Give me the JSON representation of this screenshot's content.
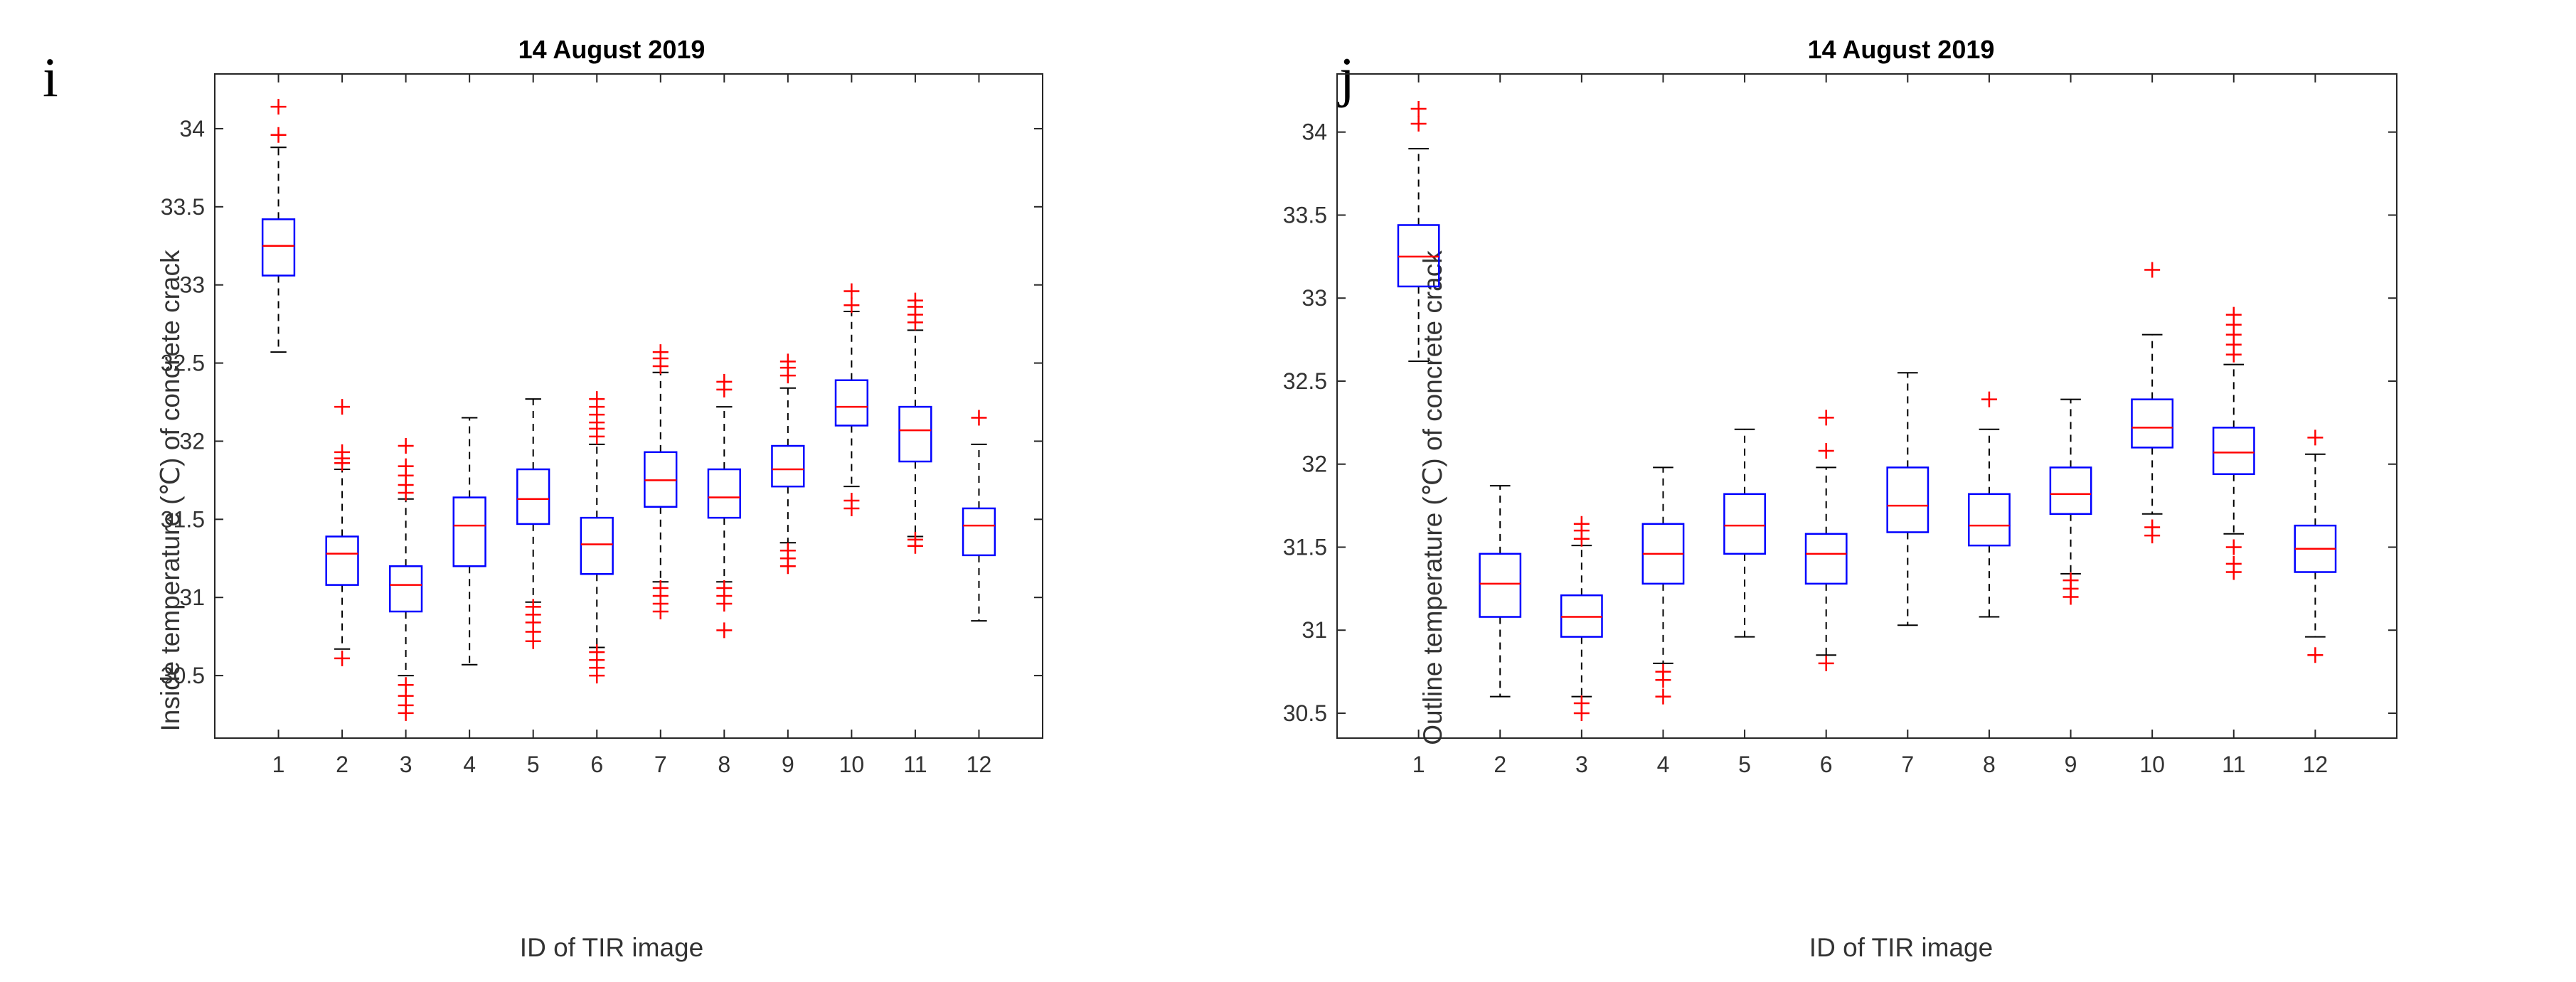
{
  "chart_data": [
    {
      "type": "box",
      "panel_label": "i",
      "title": "14 August 2019",
      "xlabel": "ID of TIR image",
      "ylabel": "Inside temperature (℃) of concrete crack",
      "categories": [
        "1",
        "2",
        "3",
        "4",
        "5",
        "6",
        "7",
        "8",
        "9",
        "10",
        "11",
        "12"
      ],
      "ylim": [
        30.1,
        34.35
      ],
      "yticks": [
        30.5,
        31,
        31.5,
        32,
        32.5,
        33,
        33.5,
        34
      ],
      "ytick_labels": [
        "30.5",
        "31",
        "31.5",
        "32",
        "32.5",
        "33",
        "33.5",
        "34"
      ],
      "colors": {
        "box": "#0000ff",
        "median": "#ff0000",
        "whisker": "#000000",
        "outlier": "#ff0000"
      },
      "boxes": [
        {
          "min": 32.57,
          "q1": 33.06,
          "median": 33.25,
          "q3": 33.42,
          "max": 33.88,
          "outliers": [
            33.96,
            34.14
          ]
        },
        {
          "min": 30.67,
          "q1": 31.08,
          "median": 31.28,
          "q3": 31.39,
          "max": 31.82,
          "outliers": [
            30.61,
            31.86,
            31.89,
            31.93,
            32.22
          ]
        },
        {
          "min": 30.5,
          "q1": 30.91,
          "median": 31.08,
          "q3": 31.2,
          "max": 31.63,
          "outliers": [
            30.26,
            30.31,
            30.37,
            30.44,
            31.67,
            31.72,
            31.78,
            31.84,
            31.97
          ]
        },
        {
          "min": 30.57,
          "q1": 31.2,
          "median": 31.46,
          "q3": 31.64,
          "max": 32.15,
          "outliers": []
        },
        {
          "min": 30.97,
          "q1": 31.47,
          "median": 31.63,
          "q3": 31.82,
          "max": 32.27,
          "outliers": [
            30.72,
            30.78,
            30.84,
            30.89,
            30.94
          ]
        },
        {
          "min": 30.68,
          "q1": 31.15,
          "median": 31.34,
          "q3": 31.51,
          "max": 31.98,
          "outliers": [
            30.5,
            30.55,
            30.6,
            30.65,
            32.03,
            32.08,
            32.12,
            32.17,
            32.22,
            32.27
          ]
        },
        {
          "min": 31.1,
          "q1": 31.58,
          "median": 31.75,
          "q3": 31.93,
          "max": 32.44,
          "outliers": [
            30.91,
            30.96,
            31.01,
            31.06,
            32.48,
            32.53,
            32.57
          ]
        },
        {
          "min": 31.1,
          "q1": 31.51,
          "median": 31.64,
          "q3": 31.82,
          "max": 32.22,
          "outliers": [
            30.79,
            30.96,
            31.01,
            31.06,
            32.33,
            32.38
          ]
        },
        {
          "min": 31.35,
          "q1": 31.71,
          "median": 31.82,
          "q3": 31.97,
          "max": 32.34,
          "outliers": [
            31.2,
            31.25,
            31.3,
            32.42,
            32.47,
            32.51
          ]
        },
        {
          "min": 31.71,
          "q1": 32.1,
          "median": 32.22,
          "q3": 32.39,
          "max": 32.83,
          "outliers": [
            31.57,
            31.62,
            32.87,
            32.96
          ]
        },
        {
          "min": 31.39,
          "q1": 31.87,
          "median": 32.07,
          "q3": 32.22,
          "max": 32.71,
          "outliers": [
            31.33,
            31.37,
            32.76,
            32.81,
            32.86,
            32.9
          ]
        },
        {
          "min": 30.85,
          "q1": 31.27,
          "median": 31.46,
          "q3": 31.57,
          "max": 31.98,
          "outliers": [
            32.15
          ]
        }
      ]
    },
    {
      "type": "box",
      "panel_label": "j",
      "title": "14 August 2019",
      "xlabel": "ID of TIR image",
      "ylabel": "Outline temperature (℃) of concrete crack",
      "categories": [
        "1",
        "2",
        "3",
        "4",
        "5",
        "6",
        "7",
        "8",
        "9",
        "10",
        "11",
        "12"
      ],
      "ylim": [
        30.35,
        34.35
      ],
      "yticks": [
        30.5,
        31,
        31.5,
        32,
        32.5,
        33,
        33.5,
        34
      ],
      "ytick_labels": [
        "30.5",
        "31",
        "31.5",
        "32",
        "32.5",
        "33",
        "33.5",
        "34"
      ],
      "colors": {
        "box": "#0000ff",
        "median": "#ff0000",
        "whisker": "#000000",
        "outlier": "#ff0000"
      },
      "boxes": [
        {
          "min": 32.62,
          "q1": 33.07,
          "median": 33.25,
          "q3": 33.44,
          "max": 33.9,
          "outliers": [
            34.05,
            34.14
          ]
        },
        {
          "min": 30.6,
          "q1": 31.08,
          "median": 31.28,
          "q3": 31.46,
          "max": 31.87,
          "outliers": []
        },
        {
          "min": 30.6,
          "q1": 30.96,
          "median": 31.08,
          "q3": 31.21,
          "max": 31.51,
          "outliers": [
            30.5,
            30.56,
            31.55,
            31.6,
            31.64
          ]
        },
        {
          "min": 30.8,
          "q1": 31.28,
          "median": 31.46,
          "q3": 31.64,
          "max": 31.98,
          "outliers": [
            30.6,
            30.7,
            30.75
          ]
        },
        {
          "min": 30.96,
          "q1": 31.46,
          "median": 31.63,
          "q3": 31.82,
          "max": 32.21,
          "outliers": []
        },
        {
          "min": 30.85,
          "q1": 31.28,
          "median": 31.46,
          "q3": 31.58,
          "max": 31.98,
          "outliers": [
            30.8,
            32.08,
            32.28
          ]
        },
        {
          "min": 31.03,
          "q1": 31.59,
          "median": 31.75,
          "q3": 31.98,
          "max": 32.55,
          "outliers": []
        },
        {
          "min": 31.08,
          "q1": 31.51,
          "median": 31.63,
          "q3": 31.82,
          "max": 32.21,
          "outliers": [
            32.39
          ]
        },
        {
          "min": 31.34,
          "q1": 31.7,
          "median": 31.82,
          "q3": 31.98,
          "max": 32.39,
          "outliers": [
            31.2,
            31.25,
            31.3
          ]
        },
        {
          "min": 31.7,
          "q1": 32.1,
          "median": 32.22,
          "q3": 32.39,
          "max": 32.78,
          "outliers": [
            31.57,
            31.62,
            33.17
          ]
        },
        {
          "min": 31.58,
          "q1": 31.94,
          "median": 32.07,
          "q3": 32.22,
          "max": 32.6,
          "outliers": [
            31.35,
            31.4,
            31.5,
            32.66,
            32.72,
            32.78,
            32.84,
            32.9
          ]
        },
        {
          "min": 30.96,
          "q1": 31.35,
          "median": 31.49,
          "q3": 31.63,
          "max": 32.06,
          "outliers": [
            30.85,
            32.16
          ]
        }
      ]
    }
  ]
}
